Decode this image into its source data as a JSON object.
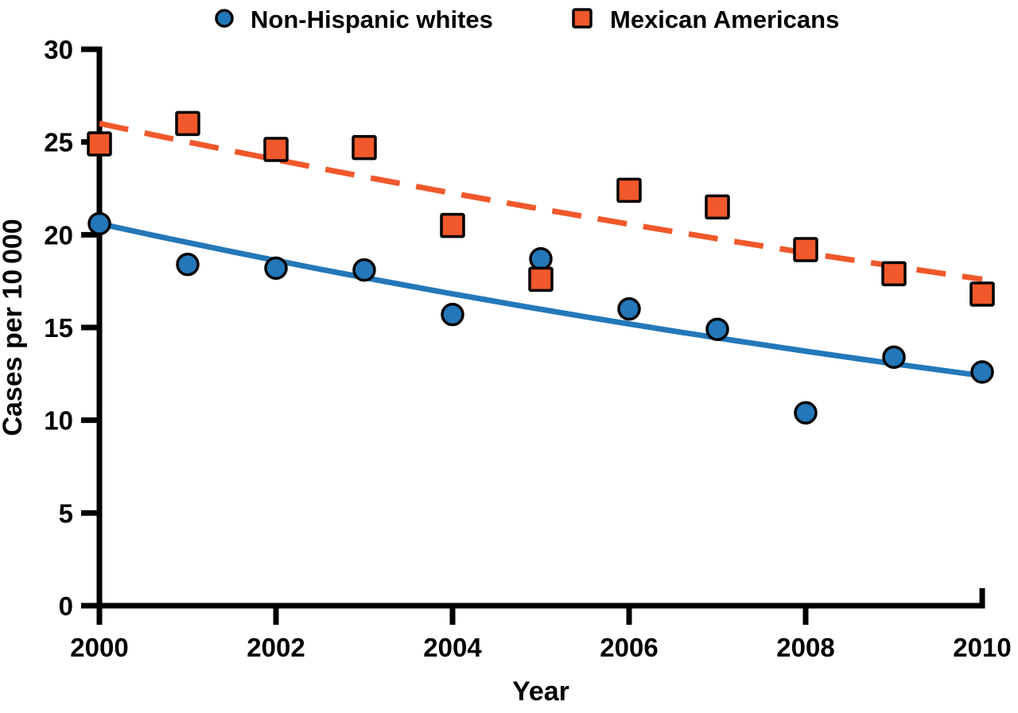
{
  "legend": {
    "items": [
      {
        "label": "Non-Hispanic whites",
        "marker": "circle"
      },
      {
        "label": "Mexican Americans",
        "marker": "square"
      }
    ]
  },
  "axes": {
    "x_label": "Year",
    "y_label": "Cases per 10 000"
  },
  "colors": {
    "blue": "#2478b9",
    "orange": "#f1582b",
    "axis": "#000000",
    "marker_outline": "#000000",
    "background": "#ffffff"
  },
  "chart_data": {
    "type": "scatter",
    "title": "",
    "xlabel": "Year",
    "ylabel": "Cases per 10 000",
    "x": [
      2000,
      2001,
      2002,
      2003,
      2004,
      2005,
      2006,
      2007,
      2008,
      2009,
      2010
    ],
    "series": [
      {
        "name": "Non-Hispanic whites",
        "marker": "circle",
        "color": "#2478b9",
        "values": [
          20.6,
          18.4,
          18.2,
          18.1,
          15.7,
          18.7,
          16.0,
          14.9,
          10.4,
          13.4,
          12.6
        ],
        "trend": {
          "type": "exponential",
          "style": "solid",
          "start": 20.6,
          "end": 12.4
        }
      },
      {
        "name": "Mexican Americans",
        "marker": "square",
        "color": "#f1582b",
        "values": [
          24.9,
          26.0,
          24.6,
          24.7,
          20.5,
          17.6,
          22.4,
          21.5,
          19.2,
          17.9,
          16.8
        ],
        "trend": {
          "type": "exponential",
          "style": "dashed",
          "start": 26.0,
          "end": 17.6
        }
      }
    ],
    "xlim": [
      2000,
      2010
    ],
    "ylim": [
      0,
      30
    ],
    "x_ticks": [
      2000,
      2002,
      2004,
      2006,
      2008,
      2010
    ],
    "y_ticks": [
      0,
      5,
      10,
      15,
      20,
      25,
      30
    ],
    "grid": false,
    "legend_position": "top"
  }
}
